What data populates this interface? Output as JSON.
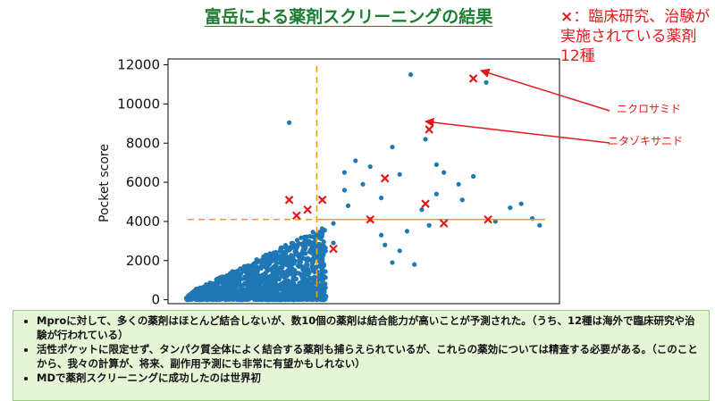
{
  "page": {
    "title": "富岳による薬剤スクリーニングの結果",
    "note": {
      "marker": "×",
      "text": "：臨床研究、治験が実施されている薬剤12種",
      "marker_color": "#e01a1a"
    },
    "callouts": [
      "ニクロサミド",
      "ニタゾキサニド"
    ],
    "bullets": [
      "Mproに対して、多くの薬剤はほとんど結合しないが、数10個の薬剤は結合能力が高いことが予測された。（うち、12種は海外で臨床研究や治験が行われている）",
      "活性ポケットに限定せず、タンパク質全体によく結合する薬剤も捕らえられているが、これらの薬効については精査する必要がある。（このことから、我々の計算が、将来、副作用予測にも非常に有望かもしれない）",
      "MDで薬剤スクリーニングに成功したのは世界初"
    ]
  },
  "chart_data": {
    "type": "scatter",
    "xlabel": "",
    "ylabel": "Pocket score",
    "ylim": [
      -200,
      12300
    ],
    "yticks": [
      0,
      2000,
      4000,
      6000,
      8000,
      10000,
      12000
    ],
    "xlim": [
      0,
      1
    ],
    "colors": {
      "points": "#1f77b4",
      "highlight": "#e01a1a",
      "threshold": "#ff9900"
    },
    "thresholds": {
      "x": 0.375,
      "y": 4100
    },
    "cluster": {
      "x_range": [
        0.02,
        0.4
      ],
      "y_range": [
        0,
        3500
      ],
      "approx_count": 1500
    },
    "points": [
      [
        0.3,
        9050
      ],
      [
        0.63,
        11500
      ],
      [
        0.835,
        11100
      ],
      [
        0.67,
        8200
      ],
      [
        0.58,
        7800
      ],
      [
        0.72,
        6500
      ],
      [
        0.6,
        6400
      ],
      [
        0.8,
        6300
      ],
      [
        0.76,
        5900
      ],
      [
        0.7,
        5400
      ],
      [
        0.77,
        5100
      ],
      [
        0.93,
        4900
      ],
      [
        0.9,
        4700
      ],
      [
        0.96,
        4150
      ],
      [
        0.98,
        3800
      ],
      [
        0.52,
        4100
      ],
      [
        0.45,
        6500
      ],
      [
        0.48,
        7100
      ],
      [
        0.5,
        5900
      ],
      [
        0.62,
        3500
      ],
      [
        0.55,
        3300
      ],
      [
        0.42,
        3900
      ],
      [
        0.46,
        4800
      ],
      [
        0.86,
        4000
      ],
      [
        0.6,
        2500
      ],
      [
        0.58,
        1900
      ],
      [
        0.42,
        2900
      ],
      [
        0.52,
        6800
      ],
      [
        0.66,
        4600
      ],
      [
        0.55,
        5200
      ],
      [
        0.7,
        6900
      ],
      [
        0.45,
        5600
      ],
      [
        0.68,
        3800
      ],
      [
        0.64,
        1800
      ],
      [
        0.56,
        2800
      ]
    ],
    "highlighted": [
      [
        0.8,
        11300
      ],
      [
        0.68,
        8700
      ],
      [
        0.56,
        6200
      ],
      [
        0.39,
        5100
      ],
      [
        0.3,
        5100
      ],
      [
        0.35,
        4600
      ],
      [
        0.32,
        4300
      ],
      [
        0.52,
        4100
      ],
      [
        0.67,
        4900
      ],
      [
        0.72,
        3900
      ],
      [
        0.84,
        4100
      ],
      [
        0.42,
        2600
      ]
    ]
  }
}
